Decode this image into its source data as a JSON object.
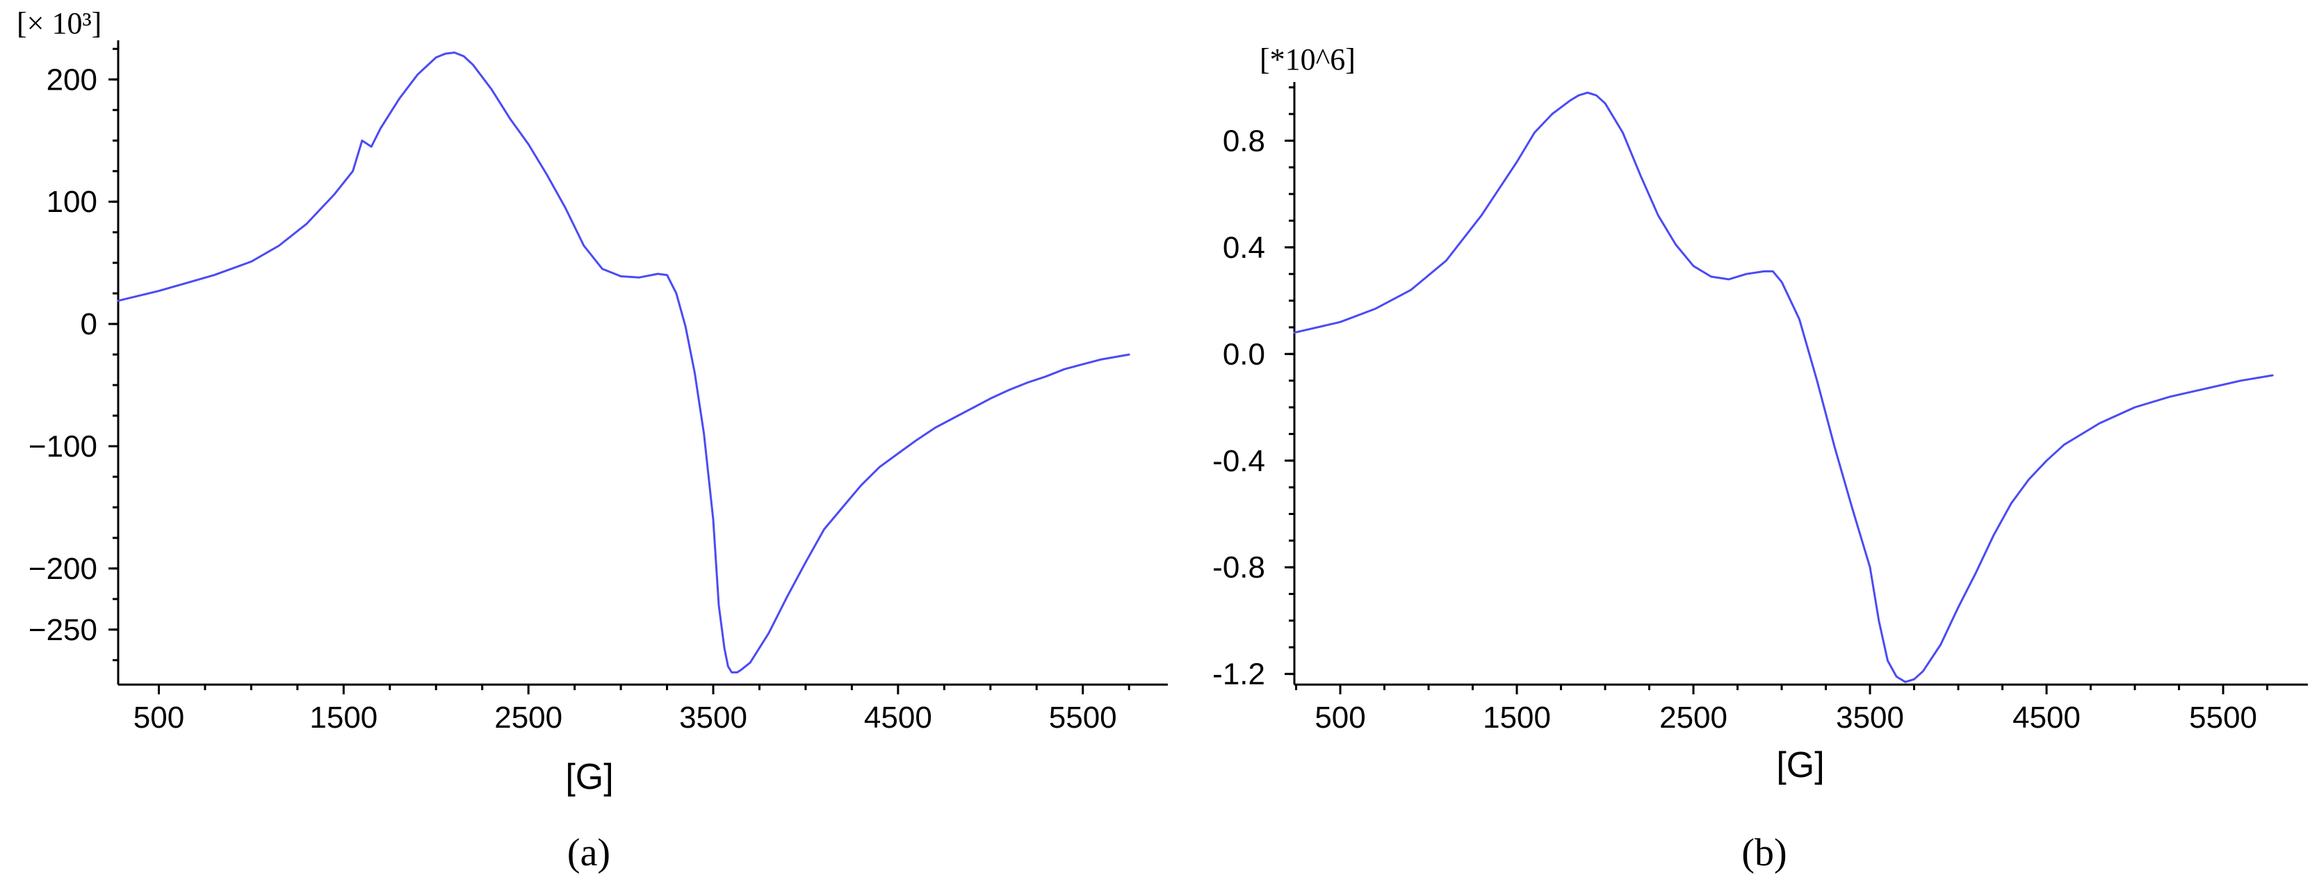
{
  "figure": {
    "panel_labels": [
      "(a)",
      "(b)"
    ]
  },
  "chart_data": [
    {
      "type": "line",
      "panel": "(a)",
      "multiplier_label": "[× 10³]",
      "xlabel": "[G]",
      "ylabel": "",
      "xlim": [
        280,
        5960
      ],
      "ylim": [
        -295,
        232
      ],
      "xticks": [
        500,
        1500,
        2500,
        3500,
        4500,
        5500
      ],
      "yticks": [
        200,
        100,
        0,
        -100,
        -200,
        -250
      ],
      "ytick_labels": [
        "200",
        "100",
        "0",
        "−100",
        "−200",
        "−250"
      ],
      "grid": false,
      "color": "#4b4bf5",
      "series": [
        {
          "x": [
            280,
            500,
            800,
            1000,
            1150,
            1300,
            1450,
            1550,
            1600,
            1650,
            1700,
            1800,
            1900,
            2000,
            2050,
            2100,
            2150,
            2200,
            2300,
            2400,
            2500,
            2600,
            2700,
            2800,
            2900,
            3000,
            3100,
            3200,
            3250,
            3300,
            3350,
            3400,
            3450,
            3500,
            3530,
            3560,
            3580,
            3600,
            3630,
            3650,
            3700,
            3750,
            3800,
            3900,
            4000,
            4100,
            4200,
            4300,
            4400,
            4500,
            4600,
            4700,
            4800,
            4900,
            5000,
            5100,
            5200,
            5300,
            5400,
            5500,
            5600,
            5750
          ],
          "y": [
            19,
            27,
            40,
            51,
            64,
            82,
            106,
            125,
            150,
            145,
            160,
            184,
            204,
            218,
            221,
            222,
            219,
            212,
            192,
            168,
            147,
            122,
            95,
            64,
            45,
            39,
            38,
            41,
            40,
            25,
            -2,
            -40,
            -90,
            -160,
            -230,
            -265,
            -280,
            -285,
            -285,
            -283,
            -277,
            -265,
            -253,
            -223,
            -195,
            -168,
            -150,
            -132,
            -117,
            -106,
            -95,
            -85,
            -77,
            -69,
            -61,
            -54,
            -48,
            -43,
            -37,
            -33,
            -29,
            -25
          ]
        }
      ]
    },
    {
      "type": "line",
      "panel": "(b)",
      "multiplier_label": "[*10^6]",
      "xlabel": "[G]",
      "ylabel": "",
      "xlim": [
        240,
        5980
      ],
      "ylim": [
        -1.24,
        1.02
      ],
      "xticks": [
        500,
        1500,
        2500,
        3500,
        4500,
        5500
      ],
      "yticks": [
        0.8,
        0.4,
        0.0,
        -0.4,
        -0.8,
        -1.2
      ],
      "ytick_labels": [
        "0.8",
        "0.4",
        "0.0",
        "-0.4",
        "-0.8",
        "-1.2"
      ],
      "grid": false,
      "color": "#4b4bf5",
      "series": [
        {
          "x": [
            240,
            500,
            700,
            900,
            1100,
            1300,
            1500,
            1600,
            1700,
            1800,
            1850,
            1900,
            1950,
            2000,
            2100,
            2200,
            2300,
            2400,
            2500,
            2600,
            2700,
            2800,
            2900,
            2950,
            3000,
            3100,
            3200,
            3300,
            3400,
            3500,
            3550,
            3600,
            3650,
            3700,
            3750,
            3800,
            3900,
            4000,
            4100,
            4200,
            4300,
            4400,
            4500,
            4600,
            4700,
            4800,
            4900,
            5000,
            5200,
            5400,
            5600,
            5780
          ],
          "y": [
            0.08,
            0.12,
            0.17,
            0.24,
            0.35,
            0.52,
            0.72,
            0.83,
            0.9,
            0.95,
            0.97,
            0.98,
            0.97,
            0.94,
            0.83,
            0.67,
            0.52,
            0.41,
            0.33,
            0.29,
            0.28,
            0.3,
            0.31,
            0.31,
            0.27,
            0.13,
            -0.1,
            -0.35,
            -0.58,
            -0.8,
            -1.0,
            -1.15,
            -1.21,
            -1.23,
            -1.22,
            -1.19,
            -1.09,
            -0.95,
            -0.82,
            -0.68,
            -0.56,
            -0.47,
            -0.4,
            -0.34,
            -0.3,
            -0.26,
            -0.23,
            -0.2,
            -0.16,
            -0.13,
            -0.1,
            -0.08
          ]
        }
      ]
    }
  ]
}
